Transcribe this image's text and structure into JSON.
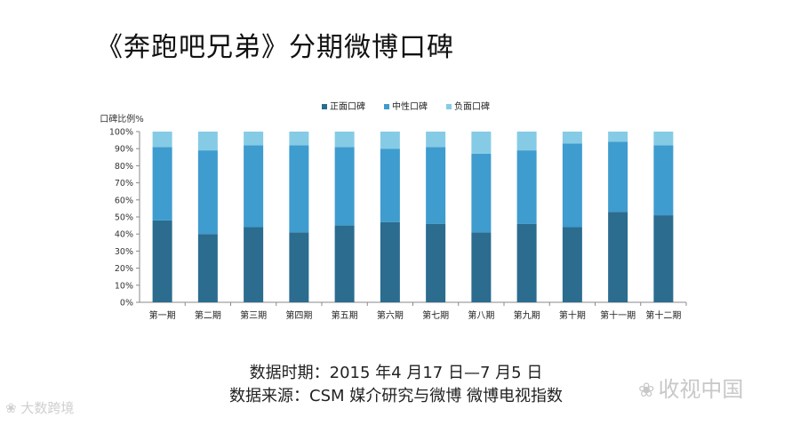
{
  "title": "《奔跑吧兄弟》分期微博口碑",
  "footer": {
    "line1": "数据时期：2015 年4 月17 日—7 月5 日",
    "line2": "数据来源：CSM 媒介研究与微博 微博电视指数"
  },
  "watermark_right": {
    "icon": "weibo-swirl-icon",
    "text": "收视中国"
  },
  "watermark_left": {
    "icon": "weibo-swirl-icon",
    "text": "大数跨境"
  },
  "colors": {
    "positive": "#2b6c8f",
    "neutral": "#3e9ccf",
    "negative": "#86cbe5",
    "axis": "#888888",
    "grid": "#dddddd"
  },
  "chart_data": {
    "type": "bar",
    "stacked": true,
    "ylabel": "口碑比例%",
    "ylim": [
      0,
      100
    ],
    "yticks": [
      "0%",
      "10%",
      "20%",
      "30%",
      "40%",
      "50%",
      "60%",
      "70%",
      "80%",
      "90%",
      "100%"
    ],
    "legend_position": "top",
    "categories": [
      "第一期",
      "第二期",
      "第三期",
      "第四期",
      "第五期",
      "第六期",
      "第七期",
      "第八期",
      "第九期",
      "第十期",
      "第十一期",
      "第十二期"
    ],
    "series": [
      {
        "name": "正面口碑",
        "values": [
          48,
          40,
          44,
          41,
          45,
          47,
          46,
          41,
          46,
          44,
          53,
          51
        ]
      },
      {
        "name": "中性口碑",
        "values": [
          43,
          49,
          48,
          51,
          46,
          43,
          45,
          46,
          43,
          49,
          41,
          41
        ]
      },
      {
        "name": "负面口碑",
        "values": [
          9,
          11,
          8,
          8,
          9,
          10,
          9,
          13,
          11,
          7,
          6,
          8
        ]
      }
    ]
  }
}
